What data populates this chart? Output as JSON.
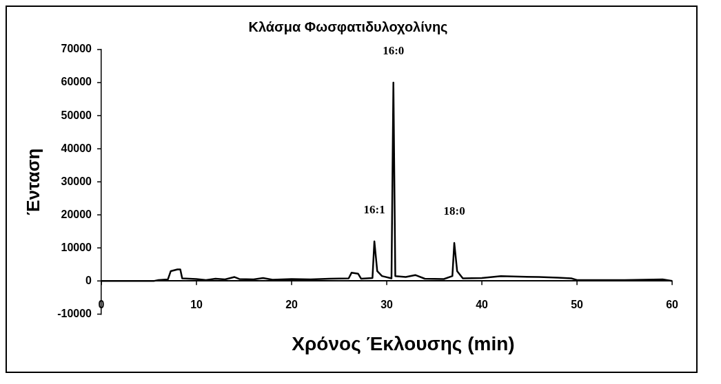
{
  "chart_data": {
    "type": "line",
    "title": "Κλάσμα Φωσφατιδυλοχολίνης",
    "xlabel": "Χρόνος Έκλουσης (min)",
    "ylabel": "Ένταση",
    "xlim": [
      0,
      60
    ],
    "xticks": [
      0,
      10,
      20,
      30,
      40,
      50,
      60
    ],
    "ylim": [
      -10000,
      70000
    ],
    "yticks": [
      -10000,
      0,
      10000,
      20000,
      30000,
      40000,
      50000,
      60000,
      70000
    ],
    "grid": false,
    "legend": false,
    "marker": "none",
    "line_style": "solid",
    "series": [
      {
        "color": "#000000",
        "x": [
          0,
          5.5,
          6,
          7,
          7.3,
          8,
          8.3,
          8.5,
          10,
          11,
          12,
          13,
          14,
          14.5,
          16,
          17,
          18,
          20,
          22,
          24,
          26,
          26.3,
          27,
          27.3,
          28.5,
          28.7,
          29,
          29.5,
          30.5,
          30.7,
          30.9,
          32,
          33,
          34,
          36,
          36.9,
          37.1,
          37.4,
          38,
          40,
          42,
          44,
          46,
          48,
          49.4,
          50,
          55,
          59,
          60
        ],
        "values": [
          0,
          0,
          300,
          500,
          3000,
          3500,
          3500,
          800,
          600,
          300,
          700,
          500,
          1200,
          600,
          500,
          900,
          400,
          600,
          500,
          700,
          800,
          2500,
          2200,
          700,
          900,
          12000,
          3000,
          1500,
          800,
          60000,
          1500,
          1200,
          1800,
          700,
          600,
          1500,
          11500,
          3000,
          800,
          900,
          1500,
          1300,
          1200,
          1000,
          800,
          300,
          300,
          500,
          0
        ]
      }
    ],
    "annotations": [
      {
        "text": "16:0",
        "x": 30.7,
        "y": 60000
      },
      {
        "text": "16:1",
        "x": 28.7,
        "y": 12000
      },
      {
        "text": "18:0",
        "x": 37.1,
        "y": 11500
      }
    ]
  }
}
